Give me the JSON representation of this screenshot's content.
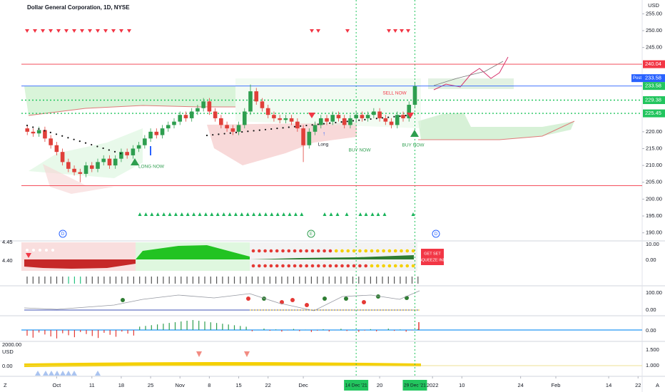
{
  "chart_data": {
    "type": "candlestick",
    "title": "Dollar General Corporation, 1D, NYSE",
    "currency": "USD",
    "up_color": "#2e9e4f",
    "down_color": "#e0403a",
    "open": [
      221,
      220,
      219.5,
      220.5,
      218,
      216,
      214,
      211,
      209,
      208,
      207.5,
      210,
      209,
      211,
      212,
      210,
      212,
      214,
      213,
      215,
      216,
      218,
      220,
      219,
      221,
      222,
      223,
      225,
      224,
      226,
      227,
      229,
      226,
      224,
      222,
      221,
      220,
      222,
      226,
      232,
      229,
      227,
      225,
      224,
      223.5,
      224,
      223,
      221,
      216,
      220,
      222,
      224,
      223,
      225,
      224,
      222,
      224,
      225,
      224,
      225,
      226,
      224,
      223,
      222,
      225,
      224,
      228
    ],
    "high": [
      222,
      221,
      221.5,
      221.5,
      219,
      217,
      215,
      212,
      210,
      209,
      211,
      211,
      212,
      213,
      213,
      213,
      215,
      215,
      216,
      217,
      219,
      221,
      221,
      222,
      223,
      224,
      226,
      226,
      227,
      228,
      230,
      230,
      227,
      225,
      223,
      222,
      223,
      227,
      234,
      233,
      230,
      228,
      226,
      225,
      225,
      225,
      224,
      222,
      221,
      223,
      225,
      225,
      226,
      226,
      225,
      225,
      226,
      226,
      226,
      227,
      227,
      225,
      224,
      226,
      226,
      229,
      234.5
    ],
    "low": [
      219,
      218.5,
      218.5,
      217,
      215,
      213,
      210,
      208,
      207,
      205,
      206.5,
      208,
      208,
      210,
      209,
      209,
      211,
      212,
      212,
      214,
      215,
      217,
      218,
      218,
      220,
      221,
      222,
      223,
      223,
      225,
      226,
      225,
      223,
      221,
      220,
      219,
      219,
      221,
      225,
      228,
      226,
      224,
      223,
      222.5,
      222.5,
      222,
      220,
      211,
      215,
      219,
      221,
      222,
      222,
      223,
      221,
      221,
      223,
      223,
      223,
      224,
      223,
      222,
      221,
      221,
      223,
      223,
      227
    ],
    "close": [
      220,
      219.5,
      220.5,
      218,
      216,
      214,
      211,
      209,
      208,
      207.5,
      210,
      209,
      211,
      212,
      210,
      212,
      214,
      213,
      215,
      216,
      218,
      220,
      219,
      221,
      222,
      223,
      225,
      224,
      226,
      227,
      229,
      226,
      224,
      222,
      221,
      220,
      222,
      226,
      232,
      229,
      227,
      225,
      224,
      223.5,
      224,
      223,
      221,
      216,
      220,
      222,
      224,
      223,
      225,
      224,
      222,
      224,
      225,
      224,
      225,
      226,
      224,
      223,
      222,
      225,
      224,
      228,
      233.5
    ],
    "ylim": [
      187.6,
      259.1
    ],
    "yticks": [
      {
        "value": 190,
        "label": "190.00"
      },
      {
        "value": 195,
        "label": "195.00"
      },
      {
        "value": 200,
        "label": "200.00"
      },
      {
        "value": 205,
        "label": "205.00"
      },
      {
        "value": 210,
        "label": "210.00"
      },
      {
        "value": 215,
        "label": "215.00"
      },
      {
        "value": 220,
        "label": "220.00"
      },
      {
        "value": 245,
        "label": "245.00"
      },
      {
        "value": 250,
        "label": "250.00"
      },
      {
        "value": 255,
        "label": "255.00"
      }
    ],
    "xlim": [
      -1,
      104.7
    ],
    "xticks": [
      {
        "value": 5,
        "label": "Oct"
      },
      {
        "value": 11,
        "label": "11"
      },
      {
        "value": 16,
        "label": "18"
      },
      {
        "value": 21,
        "label": "25"
      },
      {
        "value": 26,
        "label": "Nov"
      },
      {
        "value": 31,
        "label": "8"
      },
      {
        "value": 36,
        "label": "15"
      },
      {
        "value": 41,
        "label": "22"
      },
      {
        "value": 47,
        "label": "Dec"
      },
      {
        "value": 60,
        "label": "20"
      },
      {
        "value": 69,
        "label": "2022"
      },
      {
        "value": 74,
        "label": "10"
      },
      {
        "value": 84,
        "label": "24"
      },
      {
        "value": 90,
        "label": "Feb"
      },
      {
        "value": 99,
        "label": "14"
      },
      {
        "value": 104,
        "label": "22"
      }
    ],
    "vlines": [
      {
        "value": 56,
        "label": "14 Dec '21"
      },
      {
        "value": 66,
        "label": "29 Dec '21"
      }
    ],
    "vline_color": "#22c55e",
    "price_lines": [
      {
        "value": 240.04,
        "label": "240.04",
        "color": "#f23645",
        "style": "solid"
      },
      {
        "value": 233.58,
        "label": "233.58",
        "color": "#2962ff",
        "style": "solid",
        "tag": "Post"
      },
      {
        "value": 233.58,
        "label": "233.58",
        "color": "#22c55e",
        "style": "none"
      },
      {
        "value": 229.38,
        "label": "229.38",
        "color": "#22c55e",
        "style": "dotted"
      },
      {
        "value": 225.45,
        "label": "225.45",
        "color": "#22c55e",
        "style": "dotted"
      },
      {
        "value": 204,
        "color": "#f23645",
        "style": "solid"
      }
    ],
    "annotations": [
      {
        "text": "SELL NOW",
        "color": "#f23645"
      },
      {
        "text": "BUY NOW",
        "color": "#2e9e4f"
      },
      {
        "text": "BUY NOW",
        "color": "#2e9e4f"
      },
      {
        "text": "Long",
        "color": "#131722"
      },
      {
        "text": "LONG NOW",
        "color": "#2e9e4f"
      }
    ],
    "events": [
      "D",
      "E",
      "D"
    ]
  },
  "indicator_panes": [
    {
      "left": [
        "4.45",
        "4.40"
      ],
      "right": [
        "10.00",
        "0.00"
      ]
    },
    {
      "left": [],
      "right": [
        "100.00",
        "0.00"
      ]
    },
    {
      "left": [],
      "right": [
        "0.00"
      ]
    },
    {
      "left": [
        "2000.00",
        "USD",
        "0.00"
      ],
      "right": [
        "1.500",
        "1.000"
      ]
    }
  ],
  "squeeze_box": [
    "GET SET",
    "SQUEEZE IND"
  ],
  "corner": [
    "Z",
    "A"
  ]
}
